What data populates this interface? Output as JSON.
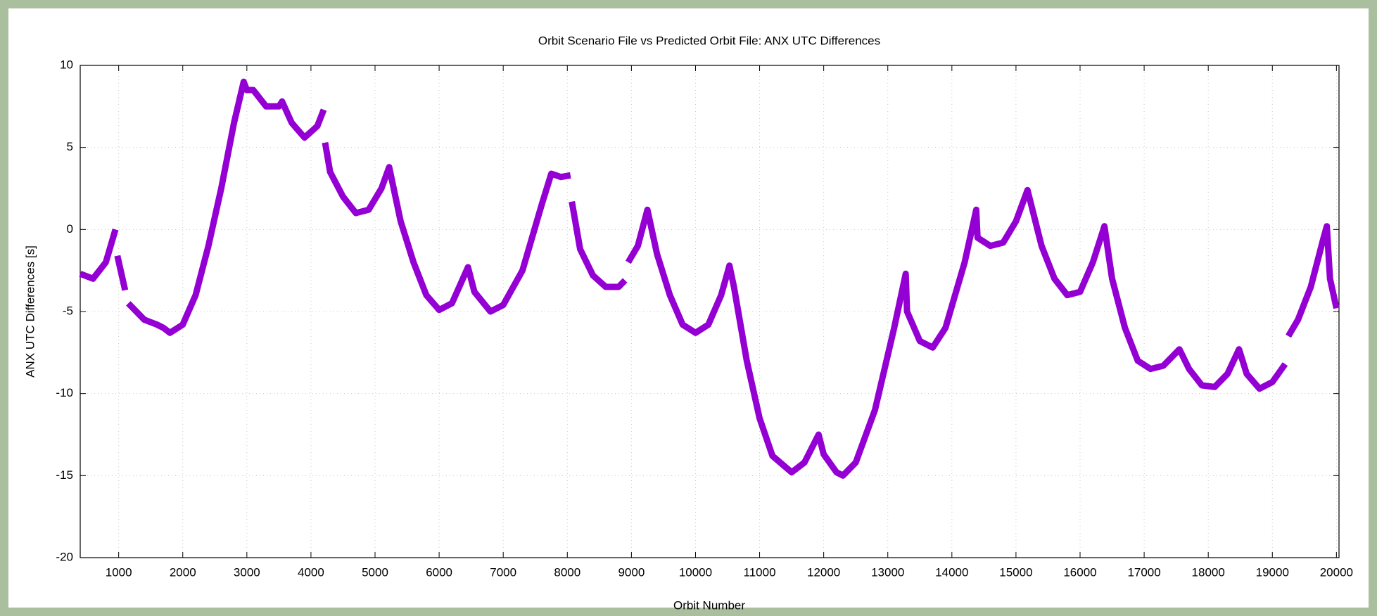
{
  "chart_data": {
    "type": "line",
    "title": "Orbit Scenario File vs Predicted Orbit File: ANX UTC Differences",
    "x_label": "Orbit Number",
    "y_label": "ANX UTC Differences [s]",
    "color": "#9400d3",
    "grid": true,
    "xlim": [
      400,
      20040
    ],
    "ylim": [
      -20,
      10
    ],
    "xticks": [
      1000,
      2000,
      3000,
      4000,
      5000,
      6000,
      7000,
      8000,
      9000,
      10000,
      11000,
      12000,
      13000,
      14000,
      15000,
      16000,
      17000,
      18000,
      19000,
      20000
    ],
    "yticks": [
      -20,
      -15,
      -10,
      -5,
      0,
      5,
      10
    ],
    "x": [
      400,
      600,
      800,
      950,
      970,
      980,
      1100,
      1120,
      1150,
      1400,
      1600,
      1700,
      1800,
      2000,
      2200,
      2400,
      2600,
      2800,
      2950,
      3000,
      3100,
      3300,
      3500,
      3550,
      3700,
      3900,
      4100,
      4200,
      4210,
      4220,
      4300,
      4500,
      4700,
      4900,
      5100,
      5220,
      5400,
      5600,
      5800,
      6000,
      6200,
      6450,
      6550,
      6800,
      7000,
      7300,
      7600,
      7750,
      7900,
      8050,
      8060,
      8070,
      8200,
      8400,
      8600,
      8800,
      8900,
      8920,
      8950,
      9100,
      9250,
      9400,
      9600,
      9800,
      10000,
      10200,
      10400,
      10530,
      10600,
      10800,
      11000,
      11200,
      11500,
      11700,
      11920,
      12000,
      12200,
      12300,
      12500,
      12800,
      13100,
      13280,
      13300,
      13500,
      13700,
      13900,
      14200,
      14380,
      14400,
      14600,
      14800,
      15000,
      15180,
      15400,
      15600,
      15800,
      16000,
      16200,
      16380,
      16500,
      16700,
      16900,
      17100,
      17300,
      17550,
      17700,
      17900,
      18100,
      18300,
      18480,
      18600,
      18800,
      19000,
      19200,
      19230,
      19250,
      19400,
      19600,
      19800,
      19850,
      19900,
      20000
    ],
    "values": [
      -2.7,
      -3.0,
      -2.0,
      0.0,
      null,
      -1.6,
      -3.7,
      null,
      -4.5,
      -5.5,
      -5.8,
      -6.0,
      -6.3,
      -5.8,
      -4.0,
      -1.0,
      2.5,
      6.5,
      9.0,
      8.5,
      8.5,
      7.5,
      7.5,
      7.8,
      6.5,
      5.6,
      6.3,
      7.3,
      null,
      5.3,
      3.5,
      2.0,
      1.0,
      1.2,
      2.5,
      3.8,
      0.5,
      -2.0,
      -4.0,
      -4.9,
      -4.5,
      -2.3,
      -3.8,
      -5.0,
      -4.6,
      -2.5,
      1.5,
      3.4,
      3.2,
      3.3,
      null,
      1.7,
      -1.2,
      -2.8,
      -3.5,
      -3.5,
      -3.1,
      null,
      -2.0,
      -1.0,
      1.2,
      -1.5,
      -4.0,
      -5.8,
      -6.3,
      -5.8,
      -4.0,
      -2.2,
      -3.5,
      -8.0,
      -11.5,
      -13.8,
      -14.8,
      -14.2,
      -12.5,
      -13.7,
      -14.8,
      -15.0,
      -14.2,
      -11.0,
      -6.0,
      -2.7,
      -5.0,
      -6.8,
      -7.2,
      -6.0,
      -2.0,
      1.2,
      -0.5,
      -1.0,
      -0.8,
      0.5,
      2.4,
      -1.0,
      -3.0,
      -4.0,
      -3.8,
      -2.0,
      0.2,
      -3.0,
      -6.0,
      -8.0,
      -8.5,
      -8.3,
      -7.3,
      -8.5,
      -9.5,
      -9.6,
      -8.8,
      -7.3,
      -8.8,
      -9.7,
      -9.3,
      -8.2,
      null,
      -6.5,
      -5.5,
      -3.5,
      -0.5,
      0.2,
      -3.0,
      -4.8
    ]
  }
}
